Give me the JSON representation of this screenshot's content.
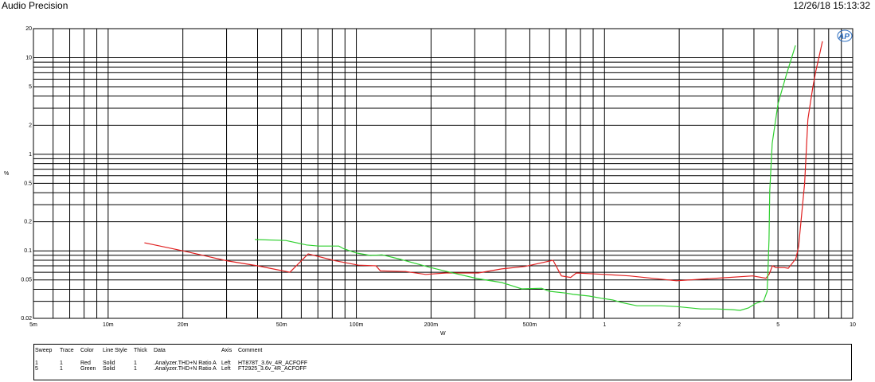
{
  "header": {
    "title": "Audio Precision",
    "timestamp": "12/26/18 15:13:32"
  },
  "logo_text": "AP",
  "chart_data": {
    "type": "line",
    "xscale": "log",
    "yscale": "log",
    "xlim": [
      0.005,
      10
    ],
    "ylim": [
      0.02,
      20
    ],
    "xlabel": "W",
    "ylabel": "%",
    "grid": true,
    "x_ticks": [
      {
        "v": 0.005,
        "label": "5m"
      },
      {
        "v": 0.01,
        "label": "10m"
      },
      {
        "v": 0.02,
        "label": "20m"
      },
      {
        "v": 0.05,
        "label": "50m"
      },
      {
        "v": 0.1,
        "label": "100m"
      },
      {
        "v": 0.2,
        "label": "200m"
      },
      {
        "v": 0.5,
        "label": "500m"
      },
      {
        "v": 1,
        "label": "1"
      },
      {
        "v": 2,
        "label": "2"
      },
      {
        "v": 5,
        "label": "5"
      },
      {
        "v": 10,
        "label": "10"
      }
    ],
    "y_ticks": [
      {
        "v": 20,
        "label": "20"
      },
      {
        "v": 10,
        "label": "10"
      },
      {
        "v": 5,
        "label": "5"
      },
      {
        "v": 2,
        "label": "2"
      },
      {
        "v": 1,
        "label": "1"
      },
      {
        "v": 0.5,
        "label": "0.5"
      },
      {
        "v": 0.2,
        "label": "0.2"
      },
      {
        "v": 0.1,
        "label": "0.1"
      },
      {
        "v": 0.05,
        "label": "0.05"
      },
      {
        "v": 0.02,
        "label": "0.02"
      }
    ],
    "series": [
      {
        "color": "#e02020",
        "x": [
          0.014,
          0.02,
          0.03,
          0.04,
          0.054,
          0.064,
          0.082,
          0.102,
          0.12,
          0.125,
          0.158,
          0.19,
          0.23,
          0.31,
          0.385,
          0.48,
          0.62,
          0.67,
          0.73,
          0.77,
          1.0,
          1.26,
          1.95,
          2.83,
          3.95,
          4.47,
          4.6,
          4.75,
          4.9,
          5.3,
          5.5,
          5.9,
          6.05,
          6.4,
          6.6,
          6.9,
          7.1,
          7.4,
          7.55
        ],
        "y": [
          0.121,
          0.1,
          0.079,
          0.07,
          0.06,
          0.093,
          0.079,
          0.071,
          0.07,
          0.062,
          0.061,
          0.057,
          0.059,
          0.059,
          0.065,
          0.069,
          0.08,
          0.055,
          0.053,
          0.059,
          0.057,
          0.055,
          0.049,
          0.052,
          0.055,
          0.052,
          0.057,
          0.07,
          0.067,
          0.067,
          0.066,
          0.083,
          0.11,
          0.5,
          2.3,
          4.9,
          7.2,
          11.6,
          14.8
        ]
      },
      {
        "color": "#30d030",
        "x": [
          0.039,
          0.052,
          0.063,
          0.0705,
          0.085,
          0.089,
          0.1,
          0.114,
          0.127,
          0.147,
          0.198,
          0.238,
          0.308,
          0.385,
          0.464,
          0.557,
          0.6,
          0.695,
          0.749,
          0.867,
          0.968,
          1.08,
          1.17,
          1.35,
          1.69,
          1.95,
          2.44,
          2.83,
          3.28,
          3.52,
          3.8,
          4.08,
          4.38,
          4.52,
          4.55,
          4.6,
          4.63,
          4.74,
          5.0,
          5.39,
          5.88
        ],
        "y": [
          0.131,
          0.128,
          0.115,
          0.112,
          0.112,
          0.105,
          0.095,
          0.0895,
          0.091,
          0.083,
          0.0675,
          0.06,
          0.0516,
          0.047,
          0.0404,
          0.041,
          0.0381,
          0.0366,
          0.0354,
          0.034,
          0.0323,
          0.031,
          0.0292,
          0.027,
          0.027,
          0.0265,
          0.025,
          0.025,
          0.0246,
          0.0242,
          0.0256,
          0.0287,
          0.0304,
          0.038,
          0.057,
          0.133,
          0.416,
          1.3,
          3.34,
          6.5,
          13.4
        ]
      }
    ]
  },
  "legend": {
    "headers": [
      "Sweep",
      "Trace",
      "Color",
      "Line Style",
      "Thick",
      "Data",
      "Axis",
      "Comment"
    ],
    "rows": [
      [
        "1",
        "1",
        "Red",
        "Solid",
        "1",
        ".Analyzer.THD+N Ratio A",
        "Left",
        "HT878T_3.6v_4R_ACFOFF"
      ],
      [
        "5",
        "1",
        "Green",
        "Solid",
        "1",
        ".Analyzer.THD+N Ratio A",
        "Left",
        "FT2925_3.6v_4R_ACFOFF"
      ]
    ]
  }
}
